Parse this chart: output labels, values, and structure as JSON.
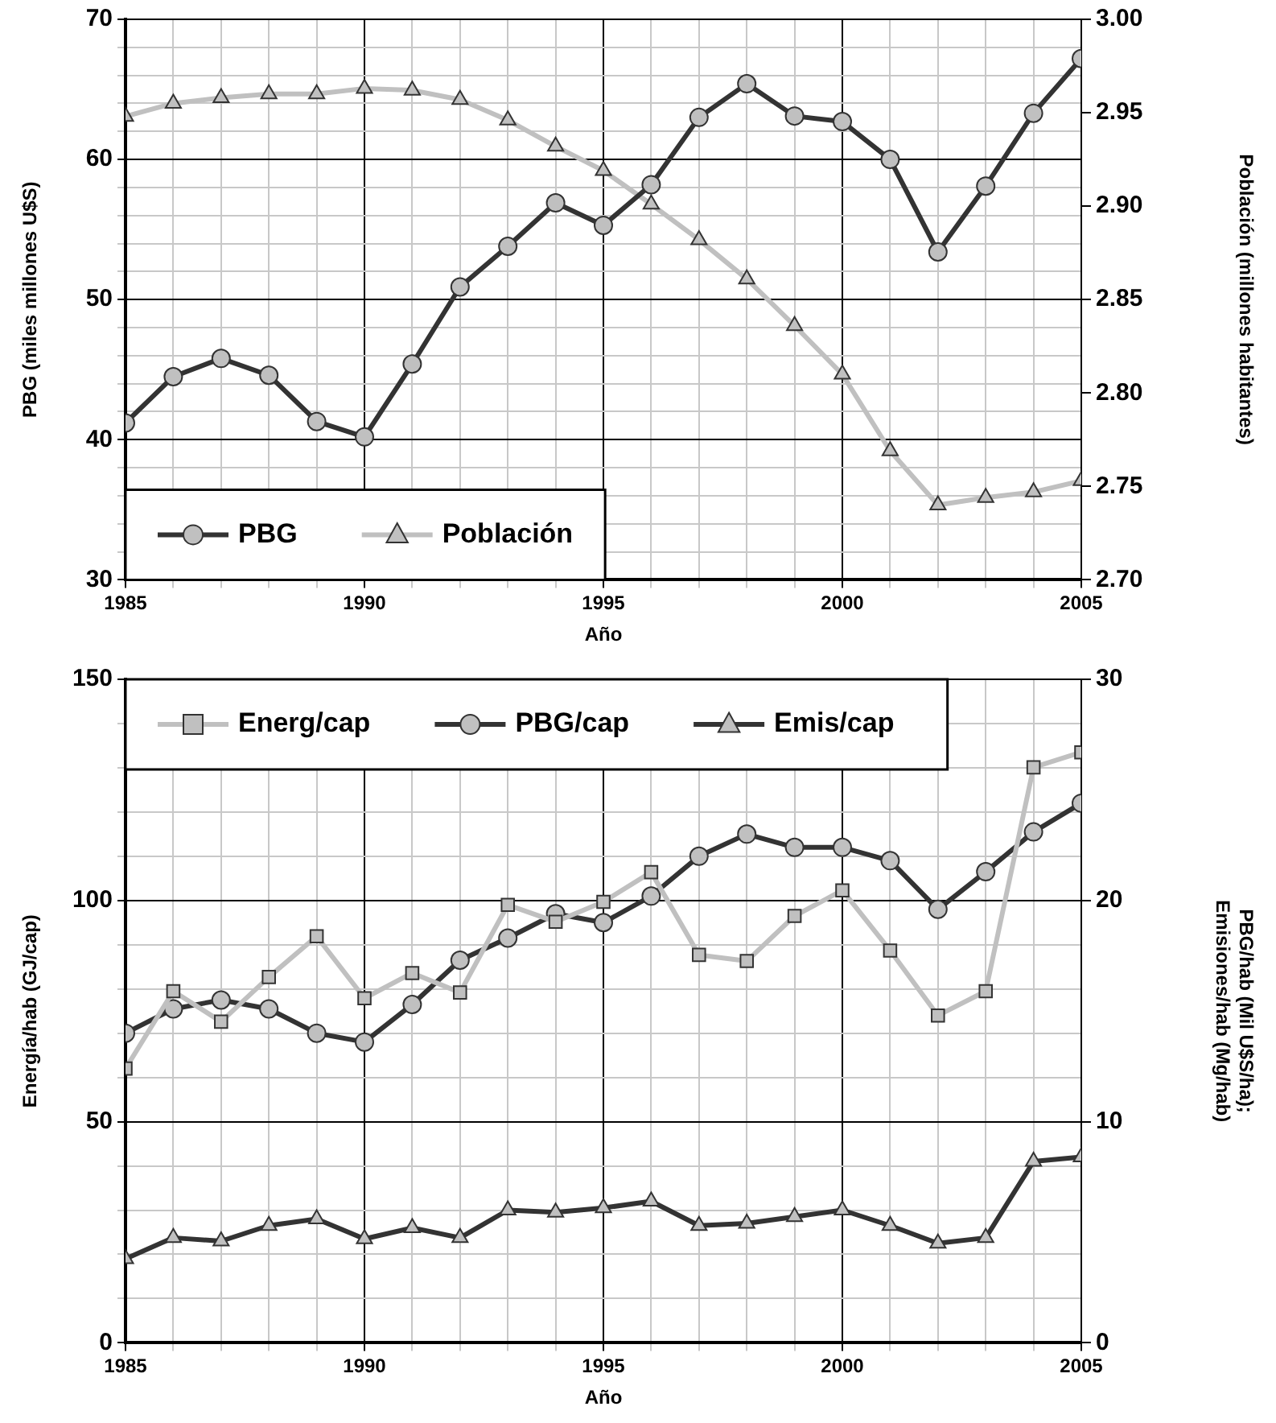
{
  "chart_data": [
    {
      "type": "line",
      "xlabel": "Año",
      "ylabel": "PBG (miles millones U$S)",
      "y2label": "Población (millones habitantes)",
      "x": [
        1985,
        1986,
        1987,
        1988,
        1989,
        1990,
        1991,
        1992,
        1993,
        1994,
        1995,
        1996,
        1997,
        1998,
        1999,
        2000,
        2001,
        2002,
        2003,
        2004,
        2005
      ],
      "series": [
        {
          "name": "PBG",
          "color": "#333333",
          "marker": "circle",
          "values": [
            41.2,
            44.5,
            45.8,
            44.6,
            41.3,
            40.2,
            45.4,
            50.9,
            53.8,
            56.9,
            55.3,
            58.2,
            63.0,
            65.4,
            63.1,
            62.7,
            60.0,
            53.4,
            58.1,
            63.3,
            67.2
          ]
        },
        {
          "name": "Población",
          "color": "#c0c0c0",
          "marker": "triangle",
          "axis": "y2",
          "values": [
            2.948,
            2.955,
            2.958,
            2.96,
            2.96,
            2.963,
            2.962,
            2.957,
            2.946,
            2.932,
            2.919,
            2.901,
            2.882,
            2.861,
            2.836,
            2.81,
            2.769,
            2.74,
            2.744,
            2.747,
            2.753
          ]
        }
      ],
      "xlim": [
        1985,
        2005
      ],
      "xticks": [
        1985,
        {
          "value": 1986,
          "label": null
        },
        {
          "value": 1987,
          "label": null
        },
        {
          "value": 1988,
          "label": null
        },
        {
          "value": 1989,
          "label": null
        },
        1990,
        {
          "value": 1991,
          "label": null
        },
        {
          "value": 1992,
          "label": null
        },
        {
          "value": 1993,
          "label": null
        },
        {
          "value": 1994,
          "label": null
        },
        1995,
        {
          "value": 1996,
          "label": null
        },
        {
          "value": 1997,
          "label": null
        },
        {
          "value": 1998,
          "label": null
        },
        {
          "value": 1999,
          "label": null
        },
        2000,
        {
          "value": 2001,
          "label": null
        },
        {
          "value": 2002,
          "label": null
        },
        {
          "value": 2003,
          "label": null
        },
        {
          "value": 2004,
          "label": null
        },
        2005
      ],
      "ylim": [
        30,
        70
      ],
      "yticks": [
        30,
        {
          "value": 32,
          "label": null
        },
        {
          "value": 34,
          "label": null
        },
        {
          "value": 36,
          "label": null
        },
        {
          "value": 38,
          "label": null
        },
        40,
        {
          "value": 42,
          "label": null
        },
        {
          "value": 44,
          "label": null
        },
        {
          "value": 46,
          "label": null
        },
        {
          "value": 48,
          "label": null
        },
        50,
        {
          "value": 52,
          "label": null
        },
        {
          "value": 54,
          "label": null
        },
        {
          "value": 56,
          "label": null
        },
        {
          "value": 58,
          "label": null
        },
        60,
        {
          "value": 62,
          "label": null
        },
        {
          "value": 64,
          "label": null
        },
        {
          "value": 66,
          "label": null
        },
        {
          "value": 68,
          "label": null
        },
        70
      ],
      "y2lim": [
        2.7,
        3.0
      ],
      "y2ticks": [
        {
          "value": 2.7,
          "label": "2.70"
        },
        {
          "value": 2.75,
          "label": "2.75"
        },
        {
          "value": 2.8,
          "label": "2.80"
        },
        {
          "value": 2.85,
          "label": "2.85"
        },
        {
          "value": 2.9,
          "label": "2.90"
        },
        {
          "value": 2.95,
          "label": "2.95"
        },
        {
          "value": 3.0,
          "label": "3.00"
        }
      ],
      "grid": true,
      "legend": "bottom left",
      "line_style": "solid"
    },
    {
      "type": "line",
      "xlabel": "Año",
      "ylabel": "Energía/hab (GJ/cap)",
      "y2label": "PBG/hab (Mil U$S/ha);\nEmisiones/hab (Mg/hab)",
      "x": [
        1985,
        1986,
        1987,
        1988,
        1989,
        1990,
        1991,
        1992,
        1993,
        1994,
        1995,
        1996,
        1997,
        1998,
        1999,
        2000,
        2001,
        2002,
        2003,
        2004,
        2005
      ],
      "series": [
        {
          "name": "Energ/cap",
          "color": "#c0c0c0",
          "marker": "square",
          "values": [
            62.0,
            79.5,
            72.6,
            82.7,
            91.9,
            77.9,
            83.6,
            79.2,
            99.0,
            95.2,
            99.7,
            106.4,
            87.7,
            86.3,
            96.5,
            102.3,
            88.7,
            74.0,
            79.5,
            130.1,
            133.5
          ]
        },
        {
          "name": "PBG/cap",
          "color": "#333333",
          "marker": "circle",
          "axis": "y2",
          "values": [
            14.0,
            15.1,
            15.5,
            15.1,
            14.0,
            13.6,
            15.3,
            17.3,
            18.3,
            19.4,
            19.0,
            20.2,
            22.0,
            23.0,
            22.4,
            22.4,
            21.8,
            19.6,
            21.3,
            23.1,
            24.4
          ]
        },
        {
          "name": "Emis/cap",
          "color": "#333333",
          "marker": "triangle",
          "axis": "y2",
          "values": [
            3.8,
            4.75,
            4.6,
            5.3,
            5.6,
            4.7,
            5.2,
            4.75,
            6.0,
            5.9,
            6.1,
            6.4,
            5.3,
            5.4,
            5.7,
            6.0,
            5.3,
            4.5,
            4.75,
            8.2,
            8.4
          ]
        }
      ],
      "xlim": [
        1985,
        2005
      ],
      "xticks": [
        1985,
        {
          "value": 1986,
          "label": null
        },
        {
          "value": 1987,
          "label": null
        },
        {
          "value": 1988,
          "label": null
        },
        {
          "value": 1989,
          "label": null
        },
        1990,
        {
          "value": 1991,
          "label": null
        },
        {
          "value": 1992,
          "label": null
        },
        {
          "value": 1993,
          "label": null
        },
        {
          "value": 1994,
          "label": null
        },
        1995,
        {
          "value": 1996,
          "label": null
        },
        {
          "value": 1997,
          "label": null
        },
        {
          "value": 1998,
          "label": null
        },
        {
          "value": 1999,
          "label": null
        },
        2000,
        {
          "value": 2001,
          "label": null
        },
        {
          "value": 2002,
          "label": null
        },
        {
          "value": 2003,
          "label": null
        },
        {
          "value": 2004,
          "label": null
        },
        2005
      ],
      "ylim": [
        0,
        150
      ],
      "yticks": [
        0,
        {
          "value": 10,
          "label": null
        },
        {
          "value": 20,
          "label": null
        },
        {
          "value": 30,
          "label": null
        },
        {
          "value": 40,
          "label": null
        },
        50,
        {
          "value": 60,
          "label": null
        },
        {
          "value": 70,
          "label": null
        },
        {
          "value": 80,
          "label": null
        },
        {
          "value": 90,
          "label": null
        },
        100,
        {
          "value": 110,
          "label": null
        },
        {
          "value": 120,
          "label": null
        },
        {
          "value": 130,
          "label": null
        },
        {
          "value": 140,
          "label": null
        },
        150
      ],
      "y2lim": [
        0,
        30
      ],
      "y2ticks": [
        0,
        10,
        20,
        30
      ],
      "grid": true,
      "legend": "top",
      "line_style": "solid"
    }
  ]
}
